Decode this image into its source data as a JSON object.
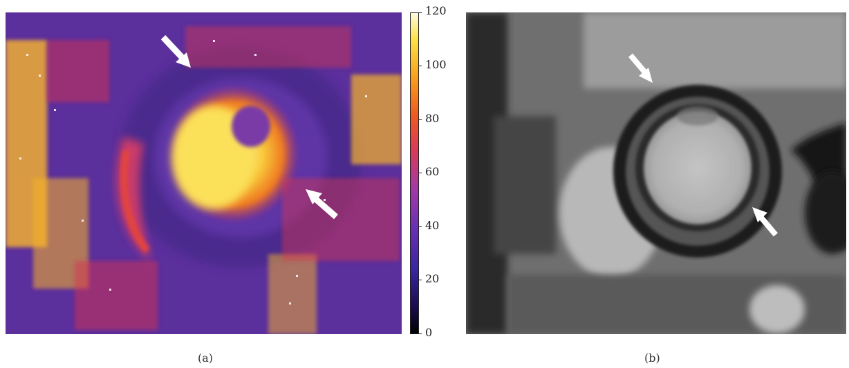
{
  "panel_a": {
    "caption": "(a)",
    "colorbar": {
      "ticks": [
        "120",
        "100",
        "80",
        "60",
        "40",
        "20",
        "0"
      ],
      "min": 0,
      "max": 120
    },
    "arrow_count": 2
  },
  "panel_b": {
    "caption": "(b)",
    "arrow_count": 2
  },
  "colors": {
    "map_background": "#5a2f9a",
    "map_hot": "#f7c23a",
    "map_red": "#d8344e",
    "mri_background": "#6a6a6a"
  }
}
